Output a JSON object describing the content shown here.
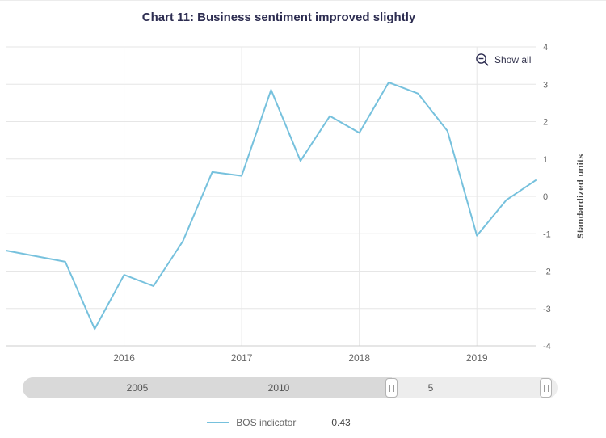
{
  "colors": {
    "line": "#76c1dd",
    "grid": "#e6e6e6",
    "axis_line": "#cccccc",
    "axis_text": "#666666",
    "title": "#2d2d51"
  },
  "show_all": {
    "label": "Show all",
    "icon": "zoom-out-icon"
  },
  "legend": {
    "series_label": "BOS indicator",
    "value": "0.43"
  },
  "slider": {
    "labels": [
      {
        "text": "2005"
      },
      {
        "text": "2010"
      },
      {
        "text": "5"
      }
    ]
  },
  "chart_data": {
    "type": "line",
    "title": "Chart 11: Business sentiment improved slightly",
    "xlabel": "",
    "ylabel": "Standardized units",
    "xlim": [
      2015,
      2019.5
    ],
    "ylim": [
      -4,
      4
    ],
    "grid": true,
    "legend_position": "bottom",
    "y_ticks": [
      4,
      3,
      2,
      1,
      0,
      -1,
      -2,
      -3,
      -4
    ],
    "x_ticks": [
      {
        "value": 2016,
        "label": "2016"
      },
      {
        "value": 2017,
        "label": "2017"
      },
      {
        "value": 2018,
        "label": "2018"
      },
      {
        "value": 2019,
        "label": "2019"
      }
    ],
    "series": [
      {
        "name": "BOS indicator",
        "color": "#76c1dd",
        "x": [
          2015,
          2015.25,
          2015.5,
          2015.75,
          2016,
          2016.25,
          2016.5,
          2016.75,
          2017,
          2017.25,
          2017.5,
          2017.75,
          2018,
          2018.25,
          2018.5,
          2018.75,
          2019,
          2019.25,
          2019.5
        ],
        "values": [
          -1.45,
          -1.6,
          -1.75,
          -3.55,
          -2.1,
          -2.4,
          -1.2,
          0.65,
          0.55,
          2.85,
          0.95,
          2.15,
          1.7,
          3.05,
          2.75,
          1.75,
          -1.05,
          -0.1,
          0.43
        ]
      }
    ]
  }
}
